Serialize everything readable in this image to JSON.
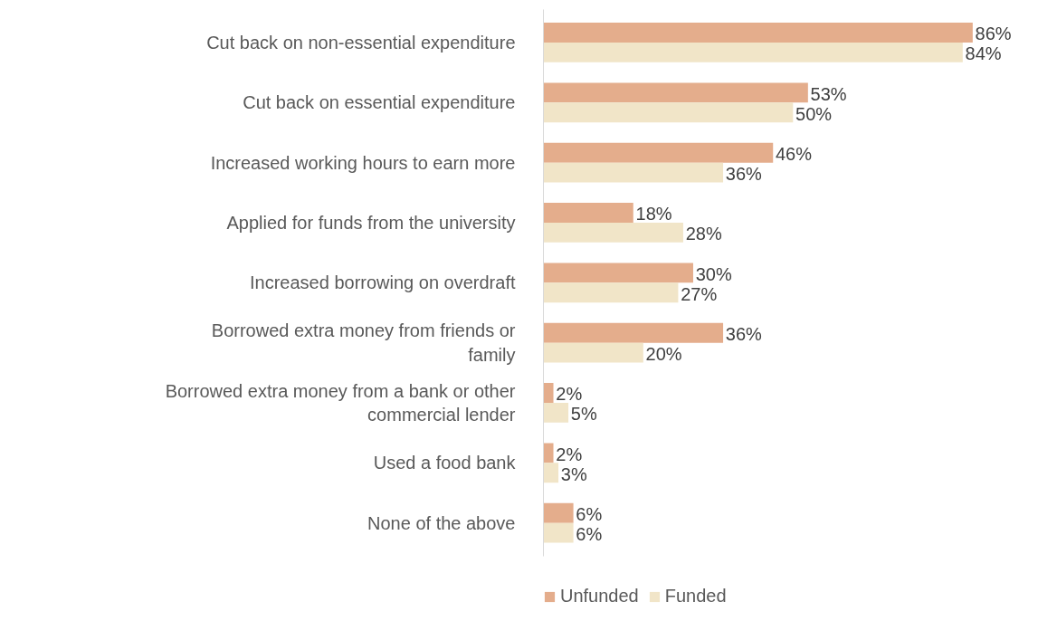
{
  "chart_data": {
    "type": "bar",
    "orientation": "horizontal",
    "categories": [
      "Cut back on non-essential expenditure",
      "Cut back on essential expenditure",
      "Increased working hours to earn more",
      "Applied for funds from the university",
      "Increased borrowing on overdraft",
      "Borrowed extra money from friends or family",
      "Borrowed extra money from a bank or other commercial lender",
      "Used a food bank",
      "None of the above"
    ],
    "series": [
      {
        "name": "Unfunded",
        "color": "#e4ad8c",
        "values": [
          86,
          53,
          46,
          18,
          30,
          36,
          2,
          2,
          6
        ],
        "value_labels": [
          "86%",
          "53%",
          "46%",
          "18%",
          "30%",
          "36%",
          "2%",
          "2%",
          "6%"
        ]
      },
      {
        "name": "Funded",
        "color": "#f1e5c8",
        "values": [
          84,
          50,
          36,
          28,
          27,
          20,
          5,
          3,
          6
        ],
        "value_labels": [
          "84%",
          "50%",
          "36%",
          "28%",
          "27%",
          "20%",
          "5%",
          "3%",
          "6%"
        ]
      }
    ],
    "legend": "bottom",
    "grid": false
  }
}
